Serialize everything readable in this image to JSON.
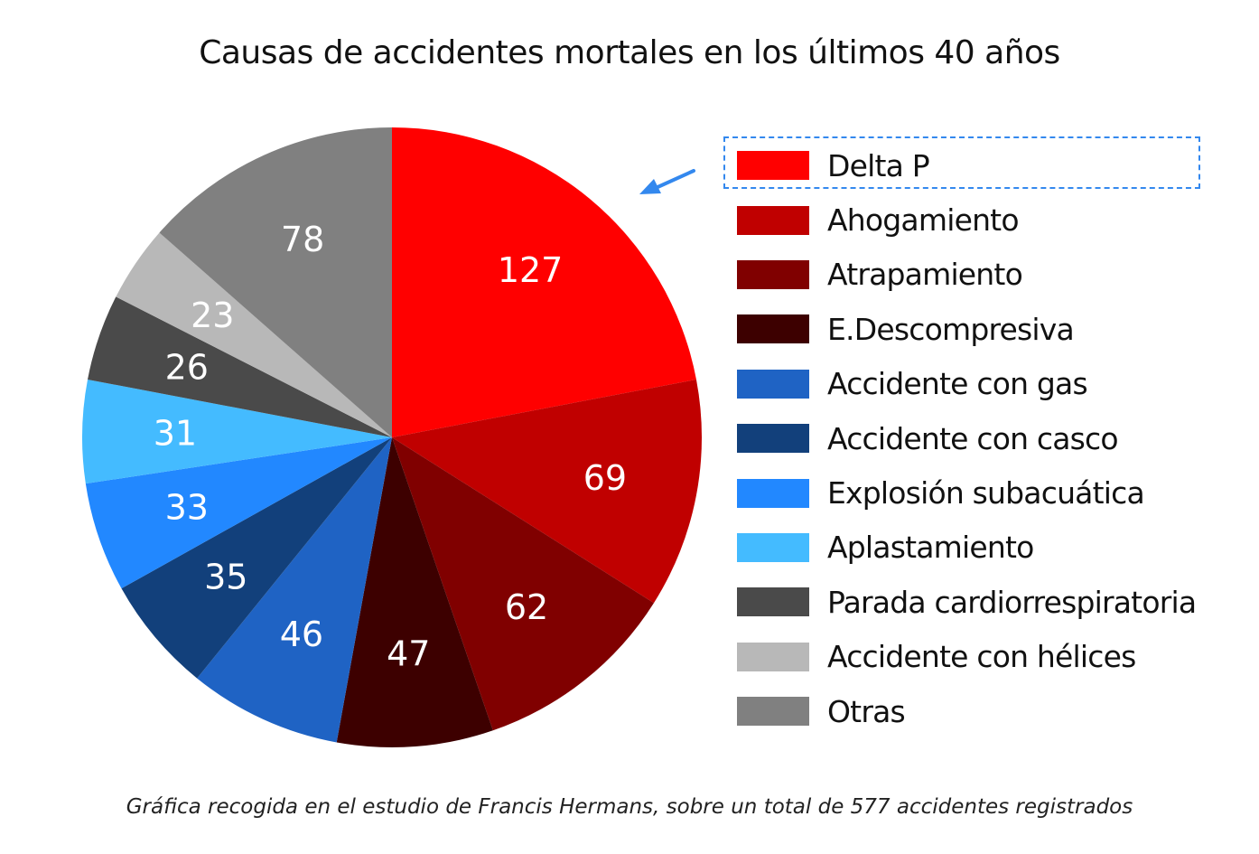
{
  "chart_data": {
    "type": "pie",
    "title": "Causas de accidentes mortales en los últimos 40 años",
    "categories": [
      "Delta P",
      "Ahogamiento",
      "Atrapamiento",
      "E.Descompresiva",
      "Accidente con gas",
      "Accidente con casco",
      "Explosión subacuática",
      "Aplastamiento",
      "Parada cardiorrespiratoria",
      "Accidente con hélices",
      "Otras"
    ],
    "values": [
      127,
      69,
      62,
      47,
      46,
      35,
      33,
      31,
      26,
      23,
      78
    ],
    "value_labels": [
      "127",
      "69",
      "62",
      "47",
      "46",
      "35",
      "33",
      "31",
      "26",
      "23",
      "78"
    ],
    "colors": [
      "#ff0000",
      "#c00000",
      "#800000",
      "#3d0000",
      "#1f63c4",
      "#12407b",
      "#2288ff",
      "#44bbff",
      "#4a4a4a",
      "#b8b8b8",
      "#808080"
    ],
    "start": "top, clockwise",
    "legend_position": "right",
    "highlighted_category": "Delta P",
    "highlight_color": "#3388ee"
  },
  "footnote": "Gráfica recogida en el estudio de Francis Hermans, sobre un total de 577 accidentes registrados"
}
